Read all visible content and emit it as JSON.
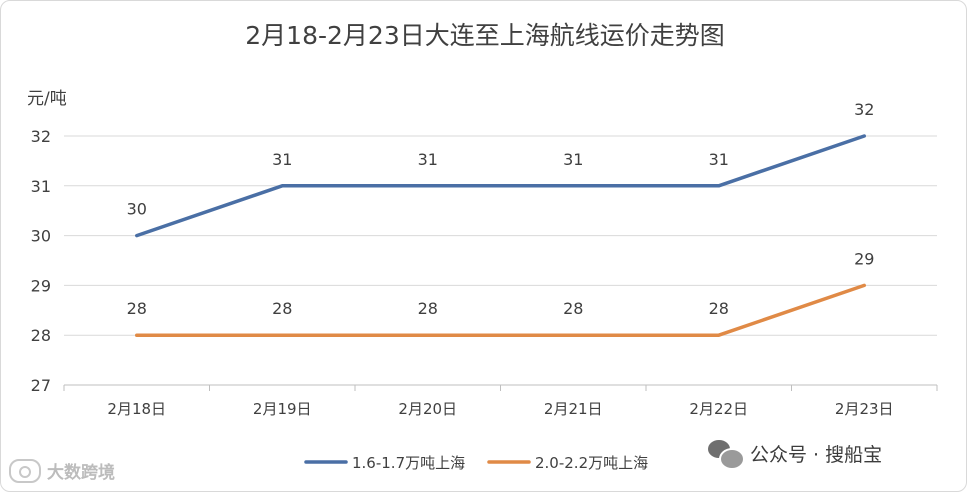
{
  "chart_data": {
    "type": "line",
    "title": "2月18-2月23日大连至上海航线运价走势图",
    "ylabel": "元/吨",
    "xlabel": "",
    "categories": [
      "2月18日",
      "2月19日",
      "2月20日",
      "2月21日",
      "2月22日",
      "2月23日"
    ],
    "yticks": [
      27,
      28,
      29,
      30,
      31,
      32
    ],
    "ylim": [
      27,
      32
    ],
    "grid": true,
    "legend": "bottom",
    "series": [
      {
        "name": "1.6-1.7万吨上海",
        "values": [
          30,
          31,
          31,
          31,
          31,
          32
        ],
        "color": "#4a6fa5"
      },
      {
        "name": "2.0-2.2万吨上海",
        "values": [
          28,
          28,
          28,
          28,
          28,
          29
        ],
        "color": "#e08a46"
      }
    ]
  },
  "watermarks": {
    "left_text": "大数跨境",
    "right_text": "公众号 · 搜船宝"
  },
  "colors": {
    "grid": "#d9d9d9",
    "axis": "#bfbfbf",
    "text": "#404040"
  }
}
